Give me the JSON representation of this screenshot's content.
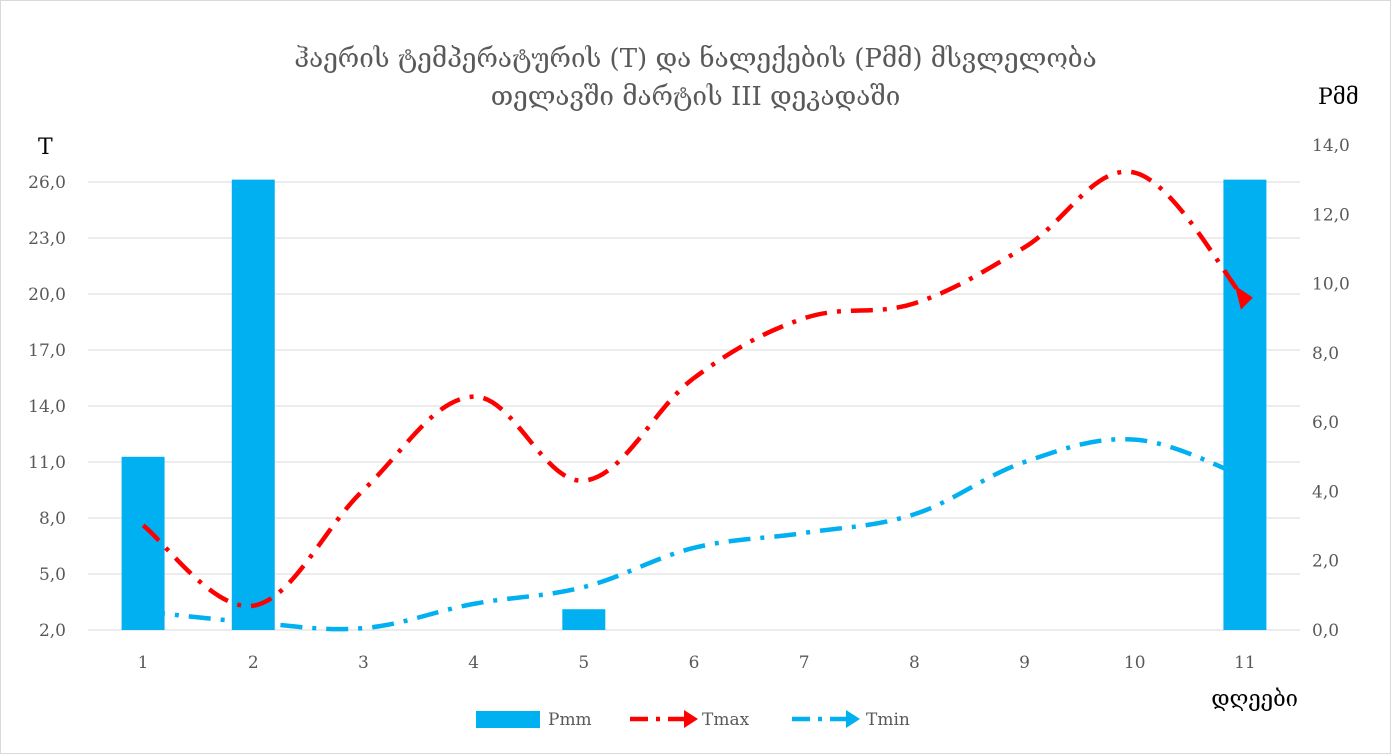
{
  "chart_data": {
    "type": "bar",
    "title_line1": "ჰაერის ტემპერატურის (T) და ნალექების (Pმმ)  მსვლელობა",
    "title_line2": "თელავში მარტის III დეკადაში",
    "xlabel": "დღეები",
    "ylabel_left": "T",
    "ylabel_right": "Pმმ",
    "categories": [
      "1",
      "2",
      "3",
      "4",
      "5",
      "6",
      "7",
      "8",
      "9",
      "10",
      "11"
    ],
    "y_left": {
      "min": 2.0,
      "max": 26.0,
      "ticks": [
        "2,0",
        "5,0",
        "8,0",
        "11,0",
        "14,0",
        "17,0",
        "20,0",
        "23,0",
        "26,0"
      ]
    },
    "y_right": {
      "min": 0.0,
      "max": 14.0,
      "ticks": [
        "0,0",
        "2,0",
        "4,0",
        "6,0",
        "8,0",
        "10,0",
        "12,0",
        "14,0"
      ]
    },
    "series": [
      {
        "name": "Pmm",
        "kind": "bar",
        "axis": "right",
        "color": "#00b0f0",
        "values": [
          5.0,
          13.0,
          0,
          0,
          0.6,
          0,
          0,
          0,
          0,
          0,
          13.0
        ]
      },
      {
        "name": "Tmax",
        "kind": "line",
        "axis": "left",
        "color": "#ff0000",
        "values": [
          7.6,
          3.3,
          9.5,
          14.5,
          10.0,
          15.5,
          18.7,
          19.5,
          22.5,
          26.5,
          19.7
        ]
      },
      {
        "name": "Tmin",
        "kind": "line",
        "axis": "left",
        "color": "#00b0f0",
        "values": [
          3.0,
          2.4,
          2.1,
          3.4,
          4.3,
          6.4,
          7.2,
          8.2,
          11.0,
          12.2,
          10.2
        ]
      }
    ],
    "grid": true,
    "legend_position": "bottom"
  }
}
